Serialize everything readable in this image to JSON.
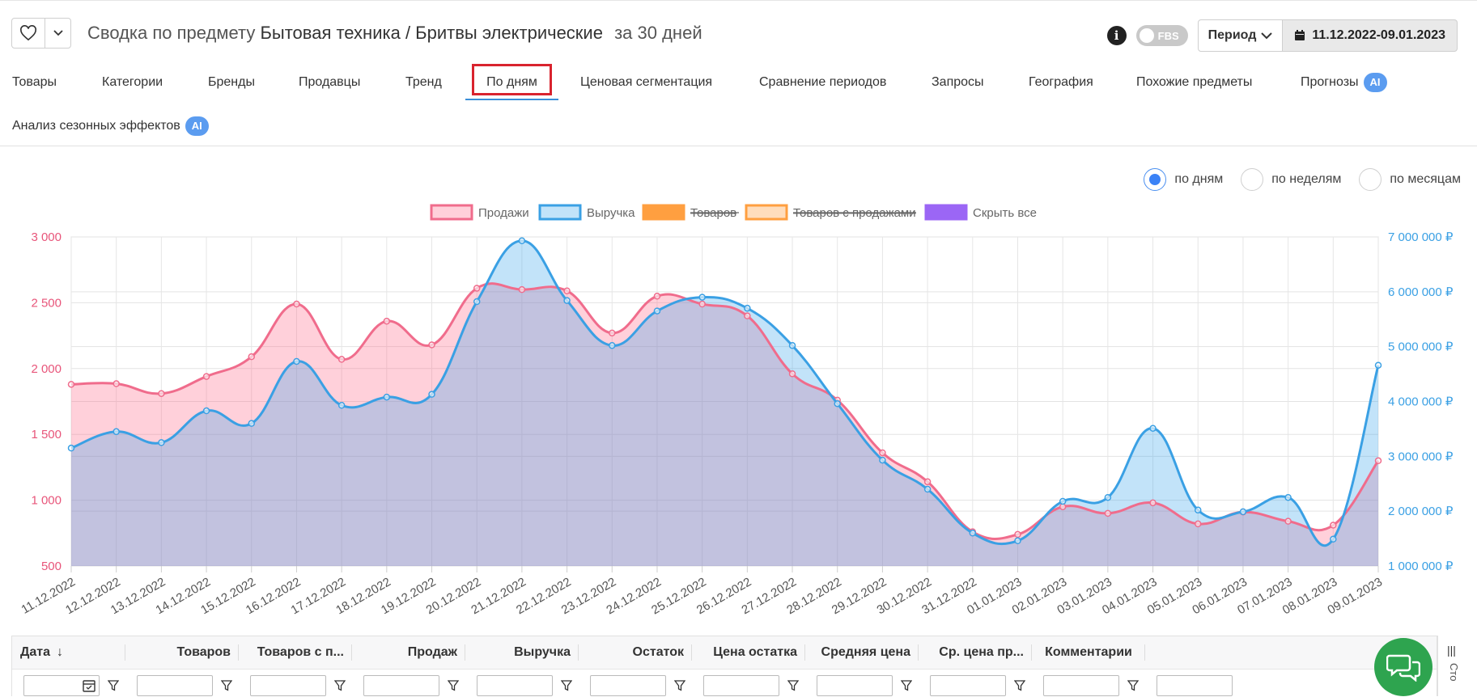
{
  "header": {
    "title_prefix": "Сводка по предмету",
    "subject": "Бытовая техника / Бритвы электрические",
    "period_text": "за 30 дней",
    "fbs_label": "FBS",
    "period_button": "Период",
    "date_range": "11.12.2022-09.01.2023"
  },
  "tabs": [
    {
      "label": "Товары"
    },
    {
      "label": "Категории"
    },
    {
      "label": "Бренды"
    },
    {
      "label": "Продавцы"
    },
    {
      "label": "Тренд"
    },
    {
      "label": "По дням",
      "active": true
    },
    {
      "label": "Ценовая сегментация"
    },
    {
      "label": "Сравнение периодов"
    },
    {
      "label": "Запросы"
    },
    {
      "label": "География"
    },
    {
      "label": "Похожие предметы"
    },
    {
      "label": "Прогнозы",
      "badge": "AI"
    },
    {
      "label": "Анализ сезонных эффектов",
      "badge": "AI"
    }
  ],
  "granularity": {
    "options": [
      "по дням",
      "по неделям",
      "по месяцам"
    ],
    "selected": "по дням"
  },
  "chart_data": {
    "type": "area",
    "legend": [
      {
        "label": "Продажи",
        "color": "#f06c8c",
        "hidden": false
      },
      {
        "label": "Выручка",
        "color": "#3aa0e4",
        "hidden": false
      },
      {
        "label": "Товаров",
        "color": "#ff9f40",
        "hidden": true
      },
      {
        "label": "Товаров с продажами",
        "color": "#ff9f40",
        "hidden": true
      },
      {
        "label": "Скрыть все",
        "color": "#9b66f5",
        "hidden": false
      }
    ],
    "x": [
      "11.12.2022",
      "12.12.2022",
      "13.12.2022",
      "14.12.2022",
      "15.12.2022",
      "16.12.2022",
      "17.12.2022",
      "18.12.2022",
      "19.12.2022",
      "20.12.2022",
      "21.12.2022",
      "22.12.2022",
      "23.12.2022",
      "24.12.2022",
      "25.12.2022",
      "26.12.2022",
      "27.12.2022",
      "28.12.2022",
      "29.12.2022",
      "30.12.2022",
      "31.12.2022",
      "01.01.2023",
      "02.01.2023",
      "03.01.2023",
      "04.01.2023",
      "05.01.2023",
      "06.01.2023",
      "07.01.2023",
      "08.01.2023",
      "09.01.2023"
    ],
    "series": [
      {
        "name": "Продажи",
        "axis": "left",
        "color": "#f06c8c",
        "values": [
          1880,
          1885,
          1810,
          1940,
          2090,
          2490,
          2070,
          2360,
          2180,
          2610,
          2600,
          2590,
          2270,
          2550,
          2490,
          2400,
          1960,
          1760,
          1360,
          1140,
          760,
          740,
          950,
          900,
          980,
          820,
          910,
          840,
          810,
          1300
        ]
      },
      {
        "name": "Выручка",
        "axis": "right",
        "color": "#3aa0e4",
        "values": [
          3150000,
          3450000,
          3250000,
          3830000,
          3600000,
          4730000,
          3930000,
          4080000,
          4130000,
          5820000,
          6930000,
          5840000,
          5020000,
          5650000,
          5900000,
          5700000,
          5020000,
          3960000,
          2930000,
          2400000,
          1600000,
          1460000,
          2180000,
          2250000,
          3510000,
          2020000,
          1990000,
          2250000,
          1490000,
          4660000
        ]
      }
    ],
    "y_left": {
      "min": 500,
      "max": 3000,
      "ticks": [
        "3 000",
        "2 500",
        "2 000",
        "1 500",
        "1 000",
        "500"
      ]
    },
    "y_right": {
      "min": 1000000,
      "max": 7000000,
      "ticks": [
        "7 000 000 ₽",
        "6 000 000 ₽",
        "5 000 000 ₽",
        "4 000 000 ₽",
        "3 000 000 ₽",
        "2 000 000 ₽",
        "1 000 000 ₽"
      ]
    },
    "grid": true
  },
  "table": {
    "columns": [
      "Дата",
      "Товаров",
      "Товаров с п...",
      "Продаж",
      "Выручка",
      "Остаток",
      "Цена остатка",
      "Средняя цена",
      "Ср. цена пр...",
      "Комментарии"
    ],
    "sort_indicator": "↓",
    "side_label": "Сто"
  }
}
